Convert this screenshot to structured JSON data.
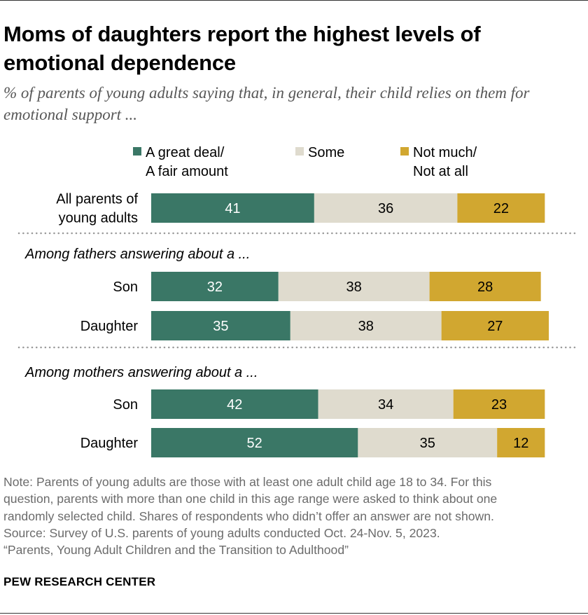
{
  "header": {
    "title": "Moms of daughters report the highest levels of emotional dependence",
    "subtitle": "% of parents of young adults saying that, in general, their child relies on them for emotional support ..."
  },
  "chart_data": {
    "type": "bar",
    "orientation": "horizontal",
    "stacked": true,
    "legend_position": "top",
    "grid": false,
    "xlim": [
      0,
      100
    ],
    "legend": [
      {
        "lines": [
          "A great deal/",
          "A fair amount"
        ],
        "color": "#3a7766"
      },
      {
        "lines": [
          "Some"
        ],
        "color": "#dfdbce"
      },
      {
        "lines": [
          "Not much/",
          "Not at all"
        ],
        "color": "#d1a730"
      }
    ],
    "groups": [
      {
        "heading": "",
        "rows": [
          {
            "label": [
              "All parents of",
              "young adults"
            ],
            "values": [
              41,
              36,
              22
            ]
          }
        ]
      },
      {
        "heading": "Among fathers answering about a ...",
        "rows": [
          {
            "label": [
              "Son"
            ],
            "values": [
              32,
              38,
              28
            ]
          },
          {
            "label": [
              "Daughter"
            ],
            "values": [
              35,
              38,
              27
            ]
          }
        ]
      },
      {
        "heading": "Among mothers answering about a ...",
        "rows": [
          {
            "label": [
              "Son"
            ],
            "values": [
              42,
              34,
              23
            ]
          },
          {
            "label": [
              "Daughter"
            ],
            "values": [
              52,
              35,
              12
            ]
          }
        ]
      }
    ]
  },
  "note": {
    "lines": [
      "Note: Parents of young adults are those with at least one adult child age 18 to 34. For this",
      "question, parents with more than one child in this age range were asked to think about one",
      "randomly selected child. Shares of respondents who didn’t offer an answer are not shown.",
      "Source: Survey of U.S. parents of young adults conducted Oct. 24-Nov. 5, 2023.",
      "“Parents, Young Adult Children and the Transition to Adulthood”"
    ]
  },
  "footer": {
    "source_org": "PEW RESEARCH CENTER"
  }
}
